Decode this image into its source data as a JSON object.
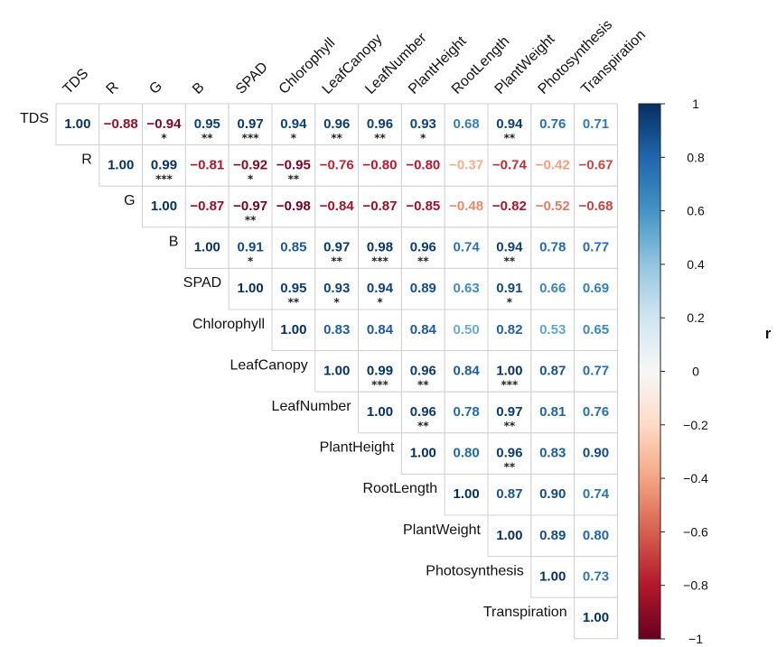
{
  "chart_data": {
    "type": "heatmap",
    "variables": [
      "TDS",
      "R",
      "G",
      "B",
      "SPAD",
      "Chlorophyll",
      "LeafCanopy",
      "LeafNumber",
      "PlantHeight",
      "RootLength",
      "PlantWeight",
      "Photosynthesis",
      "Transpiration"
    ],
    "matrix": [
      [
        "1.00",
        "-0.88",
        "-0.94",
        "0.95",
        "0.97",
        "0.94",
        "0.96",
        "0.96",
        "0.93",
        "0.68",
        "0.94",
        "0.76",
        "0.71"
      ],
      [
        null,
        "1.00",
        "0.99",
        "-0.81",
        "-0.92",
        "-0.95",
        "-0.76",
        "-0.80",
        "-0.80",
        "-0.37",
        "-0.74",
        "-0.42",
        "-0.67"
      ],
      [
        null,
        null,
        "1.00",
        "-0.87",
        "-0.97",
        "-0.98",
        "-0.84",
        "-0.87",
        "-0.85",
        "-0.48",
        "-0.82",
        "-0.52",
        "-0.68"
      ],
      [
        null,
        null,
        null,
        "1.00",
        "0.91",
        "0.85",
        "0.97",
        "0.98",
        "0.96",
        "0.74",
        "0.94",
        "0.78",
        "0.77"
      ],
      [
        null,
        null,
        null,
        null,
        "1.00",
        "0.95",
        "0.93",
        "0.94",
        "0.89",
        "0.63",
        "0.91",
        "0.66",
        "0.69"
      ],
      [
        null,
        null,
        null,
        null,
        null,
        "1.00",
        "0.83",
        "0.84",
        "0.84",
        "0.50",
        "0.82",
        "0.53",
        "0.65"
      ],
      [
        null,
        null,
        null,
        null,
        null,
        null,
        "1.00",
        "0.99",
        "0.96",
        "0.84",
        "1.00",
        "0.87",
        "0.77"
      ],
      [
        null,
        null,
        null,
        null,
        null,
        null,
        null,
        "1.00",
        "0.96",
        "0.78",
        "0.97",
        "0.81",
        "0.76"
      ],
      [
        null,
        null,
        null,
        null,
        null,
        null,
        null,
        null,
        "1.00",
        "0.80",
        "0.96",
        "0.83",
        "0.90"
      ],
      [
        null,
        null,
        null,
        null,
        null,
        null,
        null,
        null,
        null,
        "1.00",
        "0.87",
        "0.90",
        "0.74"
      ],
      [
        null,
        null,
        null,
        null,
        null,
        null,
        null,
        null,
        null,
        null,
        "1.00",
        "0.89",
        "0.80"
      ],
      [
        null,
        null,
        null,
        null,
        null,
        null,
        null,
        null,
        null,
        null,
        null,
        "1.00",
        "0.73"
      ],
      [
        null,
        null,
        null,
        null,
        null,
        null,
        null,
        null,
        null,
        null,
        null,
        null,
        "1.00"
      ]
    ],
    "significance": [
      [
        "",
        "",
        "*",
        "**",
        "***",
        "*",
        "**",
        "**",
        "*",
        "",
        "**",
        "",
        ""
      ],
      [
        "",
        "",
        "***",
        "",
        "*",
        "**",
        "",
        "",
        "",
        "",
        "",
        "",
        ""
      ],
      [
        "",
        "",
        "",
        "",
        "**",
        "",
        "",
        "",
        "",
        "",
        "",
        "",
        ""
      ],
      [
        "",
        "",
        "",
        "",
        "*",
        "",
        "**",
        "***",
        "**",
        "",
        "**",
        "",
        ""
      ],
      [
        "",
        "",
        "",
        "",
        "",
        "**",
        "*",
        "*",
        "",
        "",
        "*",
        "",
        ""
      ],
      [
        "",
        "",
        "",
        "",
        "",
        "",
        "",
        "",
        "",
        "",
        "",
        "",
        ""
      ],
      [
        "",
        "",
        "",
        "",
        "",
        "",
        "",
        "***",
        "**",
        "",
        "***",
        "",
        ""
      ],
      [
        "",
        "",
        "",
        "",
        "",
        "",
        "",
        "",
        "**",
        "",
        "**",
        "",
        ""
      ],
      [
        "",
        "",
        "",
        "",
        "",
        "",
        "",
        "",
        "",
        "",
        "**",
        "",
        ""
      ],
      [
        "",
        "",
        "",
        "",
        "",
        "",
        "",
        "",
        "",
        "",
        "",
        "",
        ""
      ],
      [
        "",
        "",
        "",
        "",
        "",
        "",
        "",
        "",
        "",
        "",
        "",
        "",
        ""
      ],
      [
        "",
        "",
        "",
        "",
        "",
        "",
        "",
        "",
        "",
        "",
        "",
        "",
        ""
      ],
      [
        "",
        "",
        "",
        "",
        "",
        "",
        "",
        "",
        "",
        "",
        "",
        "",
        ""
      ]
    ],
    "colorbar": {
      "title": "r",
      "range": [
        -1,
        1
      ],
      "ticks": [
        "1",
        "0.8",
        "0.6",
        "0.4",
        "0.2",
        "0",
        "−0.2",
        "−0.4",
        "−0.6",
        "−0.8",
        "−1"
      ],
      "colors": [
        "#67001f",
        "#b2182b",
        "#d6604d",
        "#f4a582",
        "#fddbc7",
        "#f7f7f7",
        "#d1e5f0",
        "#92c5de",
        "#4393c3",
        "#2166ac",
        "#053061"
      ]
    }
  }
}
